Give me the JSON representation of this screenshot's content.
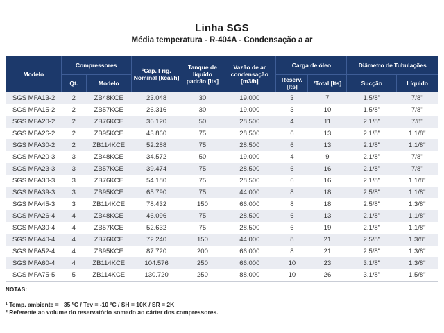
{
  "title": "Linha SGS",
  "subtitle": "Média temperatura - R-404A - Condensação a ar",
  "colors": {
    "header_bg": "#1c396b",
    "header_divider": "#3e5d96",
    "row_stripe": "#eaecf2",
    "table_border": "#c9cdd6",
    "divider_line": "#b7c0cf",
    "text": "#333333"
  },
  "table": {
    "header": {
      "modelo": "Modelo",
      "compressores": "Compressores",
      "qt": "Qt.",
      "comp_modelo": "Modelo",
      "cap_frig": "¹Cap. Frig. Nominal [kcal/h]",
      "tanque": "Tanque de líquido padrão [lts]",
      "vazao": "Vazão de ar condensação [m3/h]",
      "carga_oleo": "Carga de óleo",
      "reserv": "Reserv. [lts]",
      "total": "²Total [lts]",
      "diametro": "Diâmetro de Tubulações",
      "succao": "Sucção",
      "liquido": "Líquido"
    },
    "col_widths_pct": [
      12.8,
      5.8,
      10.4,
      11.7,
      9.6,
      12.2,
      7.4,
      9.0,
      11.5,
      9.6
    ],
    "rows": [
      [
        "SGS MFA13-2",
        "2",
        "ZB48KCE",
        "23.048",
        "30",
        "19.000",
        "3",
        "7",
        "1.5/8\"",
        "7/8\""
      ],
      [
        "SGS MFA15-2",
        "2",
        "ZB57KCE",
        "26.316",
        "30",
        "19.000",
        "3",
        "10",
        "1.5/8\"",
        "7/8\""
      ],
      [
        "SGS MFA20-2",
        "2",
        "ZB76KCE",
        "36.120",
        "50",
        "28.500",
        "4",
        "11",
        "2.1/8\"",
        "7/8\""
      ],
      [
        "SGS MFA26-2",
        "2",
        "ZB95KCE",
        "43.860",
        "75",
        "28.500",
        "6",
        "13",
        "2.1/8\"",
        "1.1/8\""
      ],
      [
        "SGS MFA30-2",
        "2",
        "ZB114KCE",
        "52.288",
        "75",
        "28.500",
        "6",
        "13",
        "2.1/8\"",
        "1.1/8\""
      ],
      [
        "SGS MFA20-3",
        "3",
        "ZB48KCE",
        "34.572",
        "50",
        "19.000",
        "4",
        "9",
        "2.1/8\"",
        "7/8\""
      ],
      [
        "SGS MFA23-3",
        "3",
        "ZB57KCE",
        "39.474",
        "75",
        "28.500",
        "6",
        "16",
        "2.1/8\"",
        "7/8\""
      ],
      [
        "SGS MFA30-3",
        "3",
        "ZB76KCE",
        "54.180",
        "75",
        "28.500",
        "6",
        "16",
        "2.1/8\"",
        "1.1/8\""
      ],
      [
        "SGS MFA39-3",
        "3",
        "ZB95KCE",
        "65.790",
        "75",
        "44.000",
        "8",
        "18",
        "2.5/8\"",
        "1.1/8\""
      ],
      [
        "SGS MFA45-3",
        "3",
        "ZB114KCE",
        "78.432",
        "150",
        "66.000",
        "8",
        "18",
        "2.5/8\"",
        "1.3/8\""
      ],
      [
        "SGS MFA26-4",
        "4",
        "ZB48KCE",
        "46.096",
        "75",
        "28.500",
        "6",
        "13",
        "2.1/8\"",
        "1.1/8\""
      ],
      [
        "SGS MFA30-4",
        "4",
        "ZB57KCE",
        "52.632",
        "75",
        "28.500",
        "6",
        "19",
        "2.1/8\"",
        "1.1/8\""
      ],
      [
        "SGS MFA40-4",
        "4",
        "ZB76KCE",
        "72.240",
        "150",
        "44.000",
        "8",
        "21",
        "2.5/8\"",
        "1.3/8\""
      ],
      [
        "SGS MFA52-4",
        "4",
        "ZB95KCE",
        "87.720",
        "200",
        "66.000",
        "8",
        "21",
        "2.5/8\"",
        "1.3/8\""
      ],
      [
        "SGS MFA60-4",
        "4",
        "ZB114KCE",
        "104.576",
        "250",
        "66.000",
        "10",
        "23",
        "3.1/8\"",
        "1.3/8\""
      ],
      [
        "SGS MFA75-5",
        "5",
        "ZB114KCE",
        "130.720",
        "250",
        "88.000",
        "10",
        "26",
        "3.1/8\"",
        "1.5/8\""
      ]
    ]
  },
  "notes": {
    "label": "NOTAS:",
    "items": [
      "¹ Temp. ambiente = +35 ºC / Tev = -10 ºC / SH = 10K / SR = 2K",
      "² Referente ao volume do reservatório somado ao cárter dos compressores."
    ]
  }
}
